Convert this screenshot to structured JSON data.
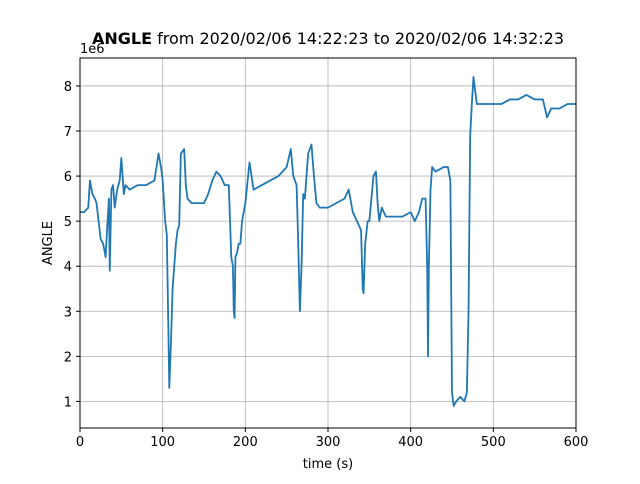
{
  "chart_data": {
    "type": "line",
    "title_parts": [
      "ANGLE",
      " from 2020/02/06 14:22:23 to 2020/02/06 14:32:23"
    ],
    "x_label": "time (s)",
    "y_label": "ANGLE",
    "offset_text": "1e6",
    "xlim": [
      0,
      600
    ],
    "xticks": [
      0,
      100,
      200,
      300,
      400,
      500,
      600
    ],
    "ylim": [
      0.41,
      8.62
    ],
    "yticks": [
      1,
      2,
      3,
      4,
      5,
      6,
      7,
      8
    ],
    "grid": true,
    "series": [
      {
        "name": "ANGLE",
        "color": "#1f77b4",
        "x": [
          0,
          5,
          10,
          12,
          15,
          18,
          20,
          25,
          28,
          31,
          33,
          35,
          36,
          38,
          40,
          42,
          45,
          48,
          50,
          53,
          55,
          60,
          70,
          80,
          90,
          95,
          98,
          100,
          103,
          105,
          107,
          108,
          110,
          112,
          114,
          116,
          118,
          120,
          122,
          126,
          128,
          130,
          135,
          150,
          155,
          160,
          165,
          170,
          175,
          180,
          183,
          185,
          186,
          187,
          188,
          190,
          192,
          194,
          196,
          198,
          200,
          205,
          210,
          220,
          230,
          240,
          250,
          255,
          258,
          262,
          264,
          266,
          268,
          270,
          272,
          276,
          280,
          283,
          286,
          290,
          300,
          310,
          320,
          325,
          330,
          335,
          340,
          342,
          343,
          345,
          348,
          350,
          355,
          358,
          360,
          362,
          365,
          370,
          380,
          390,
          400,
          405,
          410,
          414,
          418,
          420,
          421,
          422,
          424,
          426,
          430,
          440,
          445,
          448,
          450,
          452,
          455,
          460,
          465,
          468,
          470,
          472,
          474,
          476,
          478,
          480,
          490,
          500,
          510,
          520,
          530,
          540,
          550,
          560,
          565,
          570,
          580,
          590,
          600
        ],
        "values": [
          5.2,
          5.2,
          5.3,
          5.9,
          5.6,
          5.5,
          5.4,
          4.6,
          4.5,
          4.2,
          4.9,
          5.5,
          3.9,
          5.7,
          5.8,
          5.3,
          5.7,
          5.9,
          6.4,
          5.6,
          5.8,
          5.7,
          5.8,
          5.8,
          5.9,
          6.5,
          6.2,
          5.9,
          5.0,
          4.7,
          2.5,
          1.3,
          2.3,
          3.5,
          4.0,
          4.5,
          4.8,
          4.9,
          6.5,
          6.6,
          5.8,
          5.5,
          5.4,
          5.4,
          5.6,
          5.9,
          6.1,
          6.0,
          5.8,
          5.8,
          4.2,
          4.0,
          3.0,
          2.85,
          4.2,
          4.3,
          4.5,
          4.5,
          5.0,
          5.2,
          5.4,
          6.3,
          5.7,
          5.8,
          5.9,
          6.0,
          6.2,
          6.6,
          6.0,
          5.8,
          4.5,
          3.0,
          4.0,
          5.6,
          5.5,
          6.5,
          6.7,
          6.0,
          5.4,
          5.3,
          5.3,
          5.4,
          5.5,
          5.7,
          5.2,
          5.0,
          4.8,
          3.5,
          3.4,
          4.5,
          5.0,
          5.0,
          6.0,
          6.1,
          5.4,
          5.0,
          5.3,
          5.1,
          5.1,
          5.1,
          5.2,
          5.0,
          5.2,
          5.5,
          5.5,
          4.0,
          2.0,
          4.0,
          5.7,
          6.2,
          6.1,
          6.2,
          6.2,
          5.9,
          1.2,
          0.9,
          1.0,
          1.1,
          1.0,
          1.2,
          3.0,
          6.9,
          7.6,
          8.2,
          7.9,
          7.6,
          7.6,
          7.6,
          7.6,
          7.7,
          7.7,
          7.8,
          7.7,
          7.7,
          7.3,
          7.5,
          7.5,
          7.6,
          7.6
        ]
      }
    ]
  }
}
